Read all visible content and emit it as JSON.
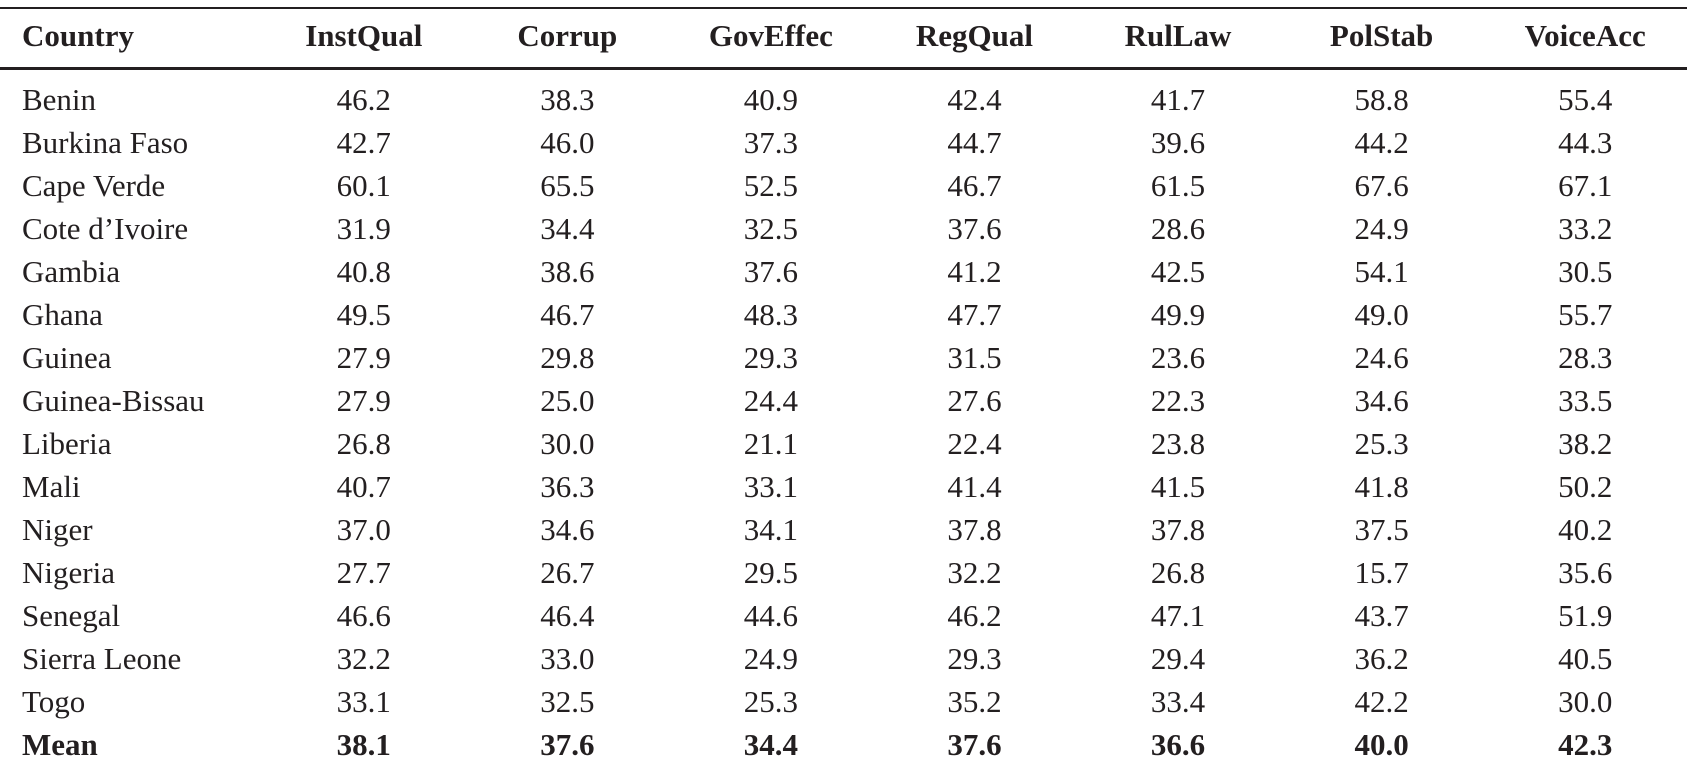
{
  "meta": {
    "description": "Governance indicator scores by West African country",
    "ink_color": "#231f20",
    "background_color": "#ffffff"
  },
  "chart_data": {
    "type": "table",
    "columns": [
      "Country",
      "InstQual",
      "Corrup",
      "GovEffec",
      "RegQual",
      "RulLaw",
      "PolStab",
      "VoiceAcc"
    ],
    "rows": [
      {
        "country": "Benin",
        "values": [
          "46.2",
          "38.3",
          "40.9",
          "42.4",
          "41.7",
          "58.8",
          "55.4"
        ],
        "bold": false
      },
      {
        "country": "Burkina Faso",
        "values": [
          "42.7",
          "46.0",
          "37.3",
          "44.7",
          "39.6",
          "44.2",
          "44.3"
        ],
        "bold": false
      },
      {
        "country": "Cape Verde",
        "values": [
          "60.1",
          "65.5",
          "52.5",
          "46.7",
          "61.5",
          "67.6",
          "67.1"
        ],
        "bold": false
      },
      {
        "country": "Cote d’Ivoire",
        "values": [
          "31.9",
          "34.4",
          "32.5",
          "37.6",
          "28.6",
          "24.9",
          "33.2"
        ],
        "bold": false
      },
      {
        "country": "Gambia",
        "values": [
          "40.8",
          "38.6",
          "37.6",
          "41.2",
          "42.5",
          "54.1",
          "30.5"
        ],
        "bold": false
      },
      {
        "country": "Ghana",
        "values": [
          "49.5",
          "46.7",
          "48.3",
          "47.7",
          "49.9",
          "49.0",
          "55.7"
        ],
        "bold": false
      },
      {
        "country": "Guinea",
        "values": [
          "27.9",
          "29.8",
          "29.3",
          "31.5",
          "23.6",
          "24.6",
          "28.3"
        ],
        "bold": false
      },
      {
        "country": "Guinea-Bissau",
        "values": [
          "27.9",
          "25.0",
          "24.4",
          "27.6",
          "22.3",
          "34.6",
          "33.5"
        ],
        "bold": false
      },
      {
        "country": "Liberia",
        "values": [
          "26.8",
          "30.0",
          "21.1",
          "22.4",
          "23.8",
          "25.3",
          "38.2"
        ],
        "bold": false
      },
      {
        "country": "Mali",
        "values": [
          "40.7",
          "36.3",
          "33.1",
          "41.4",
          "41.5",
          "41.8",
          "50.2"
        ],
        "bold": false
      },
      {
        "country": "Niger",
        "values": [
          "37.0",
          "34.6",
          "34.1",
          "37.8",
          "37.8",
          "37.5",
          "40.2"
        ],
        "bold": false
      },
      {
        "country": "Nigeria",
        "values": [
          "27.7",
          "26.7",
          "29.5",
          "32.2",
          "26.8",
          "15.7",
          "35.6"
        ],
        "bold": false
      },
      {
        "country": "Senegal",
        "values": [
          "46.6",
          "46.4",
          "44.6",
          "46.2",
          "47.1",
          "43.7",
          "51.9"
        ],
        "bold": false
      },
      {
        "country": "Sierra Leone",
        "values": [
          "32.2",
          "33.0",
          "24.9",
          "29.3",
          "29.4",
          "36.2",
          "40.5"
        ],
        "bold": false
      },
      {
        "country": "Togo",
        "values": [
          "33.1",
          "32.5",
          "25.3",
          "35.2",
          "33.4",
          "42.2",
          "30.0"
        ],
        "bold": false
      },
      {
        "country": "Mean",
        "values": [
          "38.1",
          "37.6",
          "34.4",
          "37.6",
          "36.6",
          "40.0",
          "42.3"
        ],
        "bold": true
      }
    ]
  }
}
